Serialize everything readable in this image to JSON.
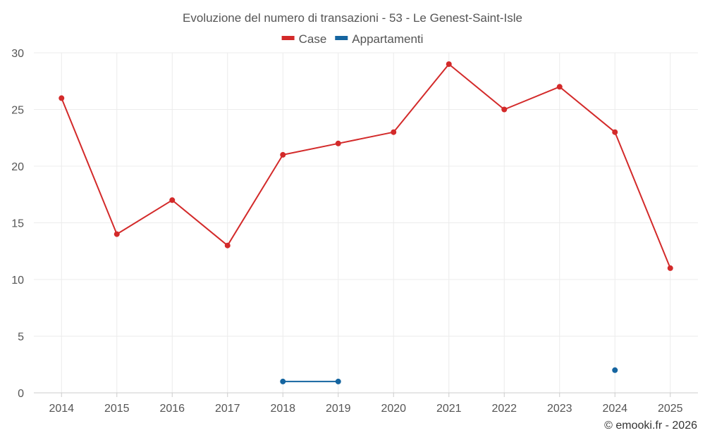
{
  "chart_data": {
    "type": "line",
    "title": "Evoluzione del numero di transazioni - 53 - Le Genest-Saint-Isle",
    "categories": [
      "2014",
      "2015",
      "2016",
      "2017",
      "2018",
      "2019",
      "2020",
      "2021",
      "2022",
      "2023",
      "2024",
      "2025"
    ],
    "ylim": [
      0,
      30
    ],
    "yticks": [
      0,
      5,
      10,
      15,
      20,
      25,
      30
    ],
    "grid": true,
    "legend_position": "top-center",
    "series": [
      {
        "name": "Case",
        "color": "#d32a2a",
        "values": [
          26,
          14,
          17,
          13,
          21,
          22,
          23,
          29,
          25,
          27,
          23,
          11
        ]
      },
      {
        "name": "Appartamenti",
        "color": "#1565a0",
        "values": [
          null,
          null,
          null,
          null,
          1,
          1,
          null,
          null,
          null,
          null,
          2,
          null
        ]
      }
    ]
  },
  "credit": "© emooki.fr - 2026"
}
